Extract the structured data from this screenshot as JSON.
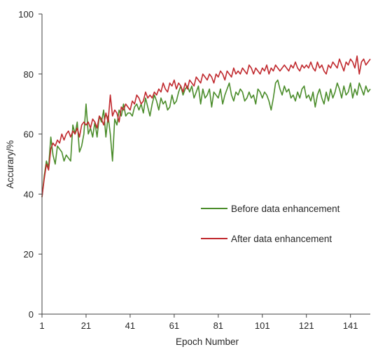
{
  "chart_data": {
    "type": "line",
    "xlabel": "Epoch Number",
    "ylabel": "Accurary/%",
    "xlim": [
      1,
      150
    ],
    "ylim": [
      0,
      100
    ],
    "xticks": [
      1,
      21,
      41,
      61,
      81,
      101,
      121,
      141
    ],
    "yticks": [
      0,
      20,
      40,
      60,
      80,
      100
    ],
    "grid": false,
    "legend_position": "lower-right",
    "series": [
      {
        "name": "Before data enhancement",
        "color": "#4a8c2a",
        "points": [
          [
            1,
            39
          ],
          [
            2,
            46
          ],
          [
            3,
            51
          ],
          [
            4,
            49
          ],
          [
            5,
            59
          ],
          [
            6,
            53
          ],
          [
            7,
            50
          ],
          [
            8,
            56
          ],
          [
            9,
            55
          ],
          [
            10,
            54
          ],
          [
            11,
            51
          ],
          [
            12,
            53
          ],
          [
            13,
            52
          ],
          [
            14,
            51
          ],
          [
            15,
            63
          ],
          [
            16,
            60
          ],
          [
            17,
            64
          ],
          [
            18,
            54
          ],
          [
            19,
            56
          ],
          [
            20,
            60
          ],
          [
            21,
            70
          ],
          [
            22,
            60
          ],
          [
            23,
            62
          ],
          [
            24,
            59
          ],
          [
            25,
            64
          ],
          [
            26,
            59
          ],
          [
            27,
            66
          ],
          [
            28,
            64
          ],
          [
            29,
            68
          ],
          [
            30,
            59
          ],
          [
            31,
            66
          ],
          [
            32,
            60
          ],
          [
            33,
            51
          ],
          [
            34,
            65
          ],
          [
            35,
            63
          ],
          [
            36,
            68
          ],
          [
            37,
            66
          ],
          [
            38,
            70
          ],
          [
            39,
            66
          ],
          [
            40,
            67
          ],
          [
            41,
            67
          ],
          [
            42,
            66
          ],
          [
            43,
            69
          ],
          [
            44,
            70
          ],
          [
            45,
            68
          ],
          [
            46,
            70
          ],
          [
            47,
            67
          ],
          [
            48,
            72
          ],
          [
            49,
            69
          ],
          [
            50,
            66
          ],
          [
            51,
            70
          ],
          [
            52,
            73
          ],
          [
            53,
            71
          ],
          [
            54,
            68
          ],
          [
            55,
            72
          ],
          [
            56,
            70
          ],
          [
            57,
            71
          ],
          [
            58,
            68
          ],
          [
            59,
            69
          ],
          [
            60,
            73
          ],
          [
            61,
            70
          ],
          [
            62,
            71
          ],
          [
            63,
            74
          ],
          [
            64,
            76
          ],
          [
            65,
            73
          ],
          [
            66,
            75
          ],
          [
            67,
            76
          ],
          [
            68,
            74
          ],
          [
            69,
            76
          ],
          [
            70,
            72
          ],
          [
            71,
            74
          ],
          [
            72,
            76
          ],
          [
            73,
            70
          ],
          [
            74,
            75
          ],
          [
            75,
            72
          ],
          [
            76,
            73
          ],
          [
            77,
            75
          ],
          [
            78,
            69
          ],
          [
            79,
            74
          ],
          [
            80,
            73
          ],
          [
            81,
            72
          ],
          [
            82,
            75
          ],
          [
            83,
            70
          ],
          [
            84,
            73
          ],
          [
            85,
            75
          ],
          [
            86,
            77
          ],
          [
            87,
            73
          ],
          [
            88,
            71
          ],
          [
            89,
            74
          ],
          [
            90,
            73
          ],
          [
            91,
            75
          ],
          [
            92,
            74
          ],
          [
            93,
            71
          ],
          [
            94,
            72
          ],
          [
            95,
            74
          ],
          [
            96,
            72
          ],
          [
            97,
            73
          ],
          [
            98,
            70
          ],
          [
            99,
            75
          ],
          [
            100,
            74
          ],
          [
            101,
            72
          ],
          [
            102,
            74
          ],
          [
            103,
            73
          ],
          [
            104,
            71
          ],
          [
            105,
            68
          ],
          [
            106,
            72
          ],
          [
            107,
            77
          ],
          [
            108,
            78
          ],
          [
            109,
            75
          ],
          [
            110,
            73
          ],
          [
            111,
            76
          ],
          [
            112,
            74
          ],
          [
            113,
            75
          ],
          [
            114,
            72
          ],
          [
            115,
            73
          ],
          [
            116,
            71
          ],
          [
            117,
            74
          ],
          [
            118,
            72
          ],
          [
            119,
            75
          ],
          [
            120,
            76
          ],
          [
            121,
            72
          ],
          [
            122,
            73
          ],
          [
            123,
            71
          ],
          [
            124,
            74
          ],
          [
            125,
            69
          ],
          [
            126,
            73
          ],
          [
            127,
            75
          ],
          [
            128,
            72
          ],
          [
            129,
            70
          ],
          [
            130,
            74
          ],
          [
            131,
            71
          ],
          [
            132,
            75
          ],
          [
            133,
            72
          ],
          [
            134,
            74
          ],
          [
            135,
            77
          ],
          [
            136,
            75
          ],
          [
            137,
            72
          ],
          [
            138,
            76
          ],
          [
            139,
            73
          ],
          [
            140,
            74
          ],
          [
            141,
            77
          ],
          [
            142,
            72
          ],
          [
            143,
            75
          ],
          [
            144,
            73
          ],
          [
            145,
            77
          ],
          [
            146,
            75
          ],
          [
            147,
            73
          ],
          [
            148,
            76
          ],
          [
            149,
            74
          ],
          [
            150,
            75
          ]
        ]
      },
      {
        "name": "After data enhancement",
        "color": "#c0282d",
        "points": [
          [
            1,
            39
          ],
          [
            2,
            45
          ],
          [
            3,
            50
          ],
          [
            4,
            48
          ],
          [
            5,
            55
          ],
          [
            6,
            57
          ],
          [
            7,
            56
          ],
          [
            8,
            58
          ],
          [
            9,
            57
          ],
          [
            10,
            60
          ],
          [
            11,
            58
          ],
          [
            12,
            60
          ],
          [
            13,
            61
          ],
          [
            14,
            59
          ],
          [
            15,
            61
          ],
          [
            16,
            60
          ],
          [
            17,
            62
          ],
          [
            18,
            59
          ],
          [
            19,
            63
          ],
          [
            20,
            64
          ],
          [
            21,
            63
          ],
          [
            22,
            64
          ],
          [
            23,
            62
          ],
          [
            24,
            65
          ],
          [
            25,
            64
          ],
          [
            26,
            62
          ],
          [
            27,
            66
          ],
          [
            28,
            65
          ],
          [
            29,
            63
          ],
          [
            30,
            67
          ],
          [
            31,
            64
          ],
          [
            32,
            73
          ],
          [
            33,
            66
          ],
          [
            34,
            68
          ],
          [
            35,
            67
          ],
          [
            36,
            64
          ],
          [
            37,
            69
          ],
          [
            38,
            68
          ],
          [
            39,
            70
          ],
          [
            40,
            69
          ],
          [
            41,
            68
          ],
          [
            42,
            71
          ],
          [
            43,
            70
          ],
          [
            44,
            73
          ],
          [
            45,
            72
          ],
          [
            46,
            70
          ],
          [
            47,
            71
          ],
          [
            48,
            74
          ],
          [
            49,
            72
          ],
          [
            50,
            73
          ],
          [
            51,
            72
          ],
          [
            52,
            74
          ],
          [
            53,
            73
          ],
          [
            54,
            75
          ],
          [
            55,
            74
          ],
          [
            56,
            77
          ],
          [
            57,
            75
          ],
          [
            58,
            74
          ],
          [
            59,
            77
          ],
          [
            60,
            76
          ],
          [
            61,
            78
          ],
          [
            62,
            75
          ],
          [
            63,
            77
          ],
          [
            64,
            76
          ],
          [
            65,
            74
          ],
          [
            66,
            77
          ],
          [
            67,
            75
          ],
          [
            68,
            78
          ],
          [
            69,
            77
          ],
          [
            70,
            76
          ],
          [
            71,
            79
          ],
          [
            72,
            78
          ],
          [
            73,
            77
          ],
          [
            74,
            80
          ],
          [
            75,
            79
          ],
          [
            76,
            78
          ],
          [
            77,
            80
          ],
          [
            78,
            79
          ],
          [
            79,
            77
          ],
          [
            80,
            80
          ],
          [
            81,
            79
          ],
          [
            82,
            81
          ],
          [
            83,
            80
          ],
          [
            84,
            78
          ],
          [
            85,
            81
          ],
          [
            86,
            80
          ],
          [
            87,
            79
          ],
          [
            88,
            82
          ],
          [
            89,
            80
          ],
          [
            90,
            81
          ],
          [
            91,
            80
          ],
          [
            92,
            82
          ],
          [
            93,
            81
          ],
          [
            94,
            80
          ],
          [
            95,
            83
          ],
          [
            96,
            82
          ],
          [
            97,
            80
          ],
          [
            98,
            82
          ],
          [
            99,
            81
          ],
          [
            100,
            80
          ],
          [
            101,
            82
          ],
          [
            102,
            81
          ],
          [
            103,
            83
          ],
          [
            104,
            80
          ],
          [
            105,
            82
          ],
          [
            106,
            81
          ],
          [
            107,
            83
          ],
          [
            108,
            82
          ],
          [
            109,
            81
          ],
          [
            110,
            82
          ],
          [
            111,
            83
          ],
          [
            112,
            82
          ],
          [
            113,
            81
          ],
          [
            114,
            83
          ],
          [
            115,
            82
          ],
          [
            116,
            84
          ],
          [
            117,
            82
          ],
          [
            118,
            81
          ],
          [
            119,
            83
          ],
          [
            120,
            82
          ],
          [
            121,
            83
          ],
          [
            122,
            82
          ],
          [
            123,
            84
          ],
          [
            124,
            82
          ],
          [
            125,
            81
          ],
          [
            126,
            84
          ],
          [
            127,
            82
          ],
          [
            128,
            83
          ],
          [
            129,
            81
          ],
          [
            130,
            80
          ],
          [
            131,
            83
          ],
          [
            132,
            82
          ],
          [
            133,
            84
          ],
          [
            134,
            83
          ],
          [
            135,
            82
          ],
          [
            136,
            85
          ],
          [
            137,
            83
          ],
          [
            138,
            81
          ],
          [
            139,
            84
          ],
          [
            140,
            83
          ],
          [
            141,
            85
          ],
          [
            142,
            84
          ],
          [
            143,
            82
          ],
          [
            144,
            86
          ],
          [
            145,
            80
          ],
          [
            146,
            84
          ],
          [
            147,
            85
          ],
          [
            148,
            83
          ],
          [
            149,
            84
          ],
          [
            150,
            85
          ]
        ]
      }
    ]
  }
}
